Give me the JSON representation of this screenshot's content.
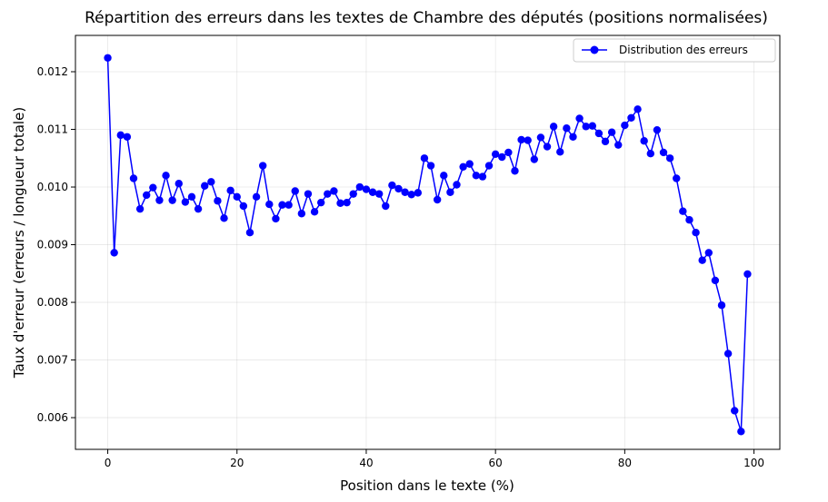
{
  "chart_data": {
    "type": "line",
    "title": "Répartition des erreurs dans les textes de Chambre des députés (positions normalisées)",
    "xlabel": "Position dans le texte (%)",
    "ylabel": "Taux d'erreur (erreurs / longueur totale)",
    "xlim": [
      -5,
      104
    ],
    "ylim": [
      0.00545,
      0.01263
    ],
    "xticks": [
      0,
      20,
      40,
      60,
      80,
      100
    ],
    "yticks": [
      0.006,
      0.007,
      0.008,
      0.009,
      0.01,
      0.011,
      0.012
    ],
    "ytick_labels": [
      "0.006",
      "0.007",
      "0.008",
      "0.009",
      "0.010",
      "0.011",
      "0.012"
    ],
    "grid": true,
    "legend_position": "top-right",
    "color": "#0000ff",
    "series": [
      {
        "name": "Distribution des erreurs",
        "x": [
          0,
          1,
          2,
          3,
          4,
          5,
          6,
          7,
          8,
          9,
          10,
          11,
          12,
          13,
          14,
          15,
          16,
          17,
          18,
          19,
          20,
          21,
          22,
          23,
          24,
          25,
          26,
          27,
          28,
          29,
          30,
          31,
          32,
          33,
          34,
          35,
          36,
          37,
          38,
          39,
          40,
          41,
          42,
          43,
          44,
          45,
          46,
          47,
          48,
          49,
          50,
          51,
          52,
          53,
          54,
          55,
          56,
          57,
          58,
          59,
          60,
          61,
          62,
          63,
          64,
          65,
          66,
          67,
          68,
          69,
          70,
          71,
          72,
          73,
          74,
          75,
          76,
          77,
          78,
          79,
          80,
          81,
          82,
          83,
          84,
          85,
          86,
          87,
          88,
          89,
          90,
          91,
          92,
          93,
          94,
          95,
          96,
          97,
          98,
          99
        ],
        "y": [
          0.01224,
          0.00886,
          0.0109,
          0.01087,
          0.01015,
          0.00962,
          0.00986,
          0.00999,
          0.00977,
          0.0102,
          0.00977,
          0.01006,
          0.00974,
          0.00983,
          0.00962,
          0.01002,
          0.01009,
          0.00976,
          0.00946,
          0.00994,
          0.00983,
          0.00967,
          0.00921,
          0.00983,
          0.01037,
          0.0097,
          0.00945,
          0.00969,
          0.00969,
          0.00993,
          0.00954,
          0.00988,
          0.00957,
          0.00973,
          0.00988,
          0.00993,
          0.00972,
          0.00973,
          0.00988,
          0.01,
          0.00996,
          0.00991,
          0.00988,
          0.00967,
          0.01003,
          0.00997,
          0.00991,
          0.00987,
          0.0099,
          0.0105,
          0.01037,
          0.00978,
          0.0102,
          0.00991,
          0.01004,
          0.01035,
          0.0104,
          0.0102,
          0.01018,
          0.01037,
          0.01057,
          0.01052,
          0.0106,
          0.01028,
          0.01082,
          0.01081,
          0.01048,
          0.01086,
          0.0107,
          0.01105,
          0.01061,
          0.01102,
          0.01087,
          0.01119,
          0.01105,
          0.01106,
          0.01093,
          0.01079,
          0.01095,
          0.01073,
          0.01107,
          0.0112,
          0.01135,
          0.0108,
          0.01058,
          0.01099,
          0.0106,
          0.0105,
          0.01015,
          0.00958,
          0.00943,
          0.00921,
          0.00873,
          0.00886,
          0.00838,
          0.00795,
          0.00711,
          0.00612,
          0.00576,
          0.00849
        ]
      }
    ]
  }
}
